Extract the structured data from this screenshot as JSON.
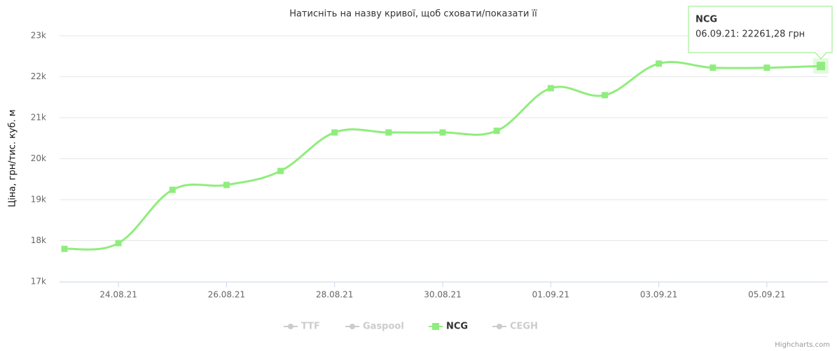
{
  "chart_data": {
    "type": "line",
    "title": "Натисніть на назву кривої, щоб сховати/показати її",
    "y_axis_label": "Ціна, грн/тис. куб. м",
    "credits": "Highcharts.com",
    "categories": [
      null,
      "24.08.21",
      null,
      "26.08.21",
      null,
      "28.08.21",
      null,
      "30.08.21",
      null,
      "01.09.21",
      null,
      "03.09.21",
      null,
      "05.09.21",
      null
    ],
    "series": [
      {
        "name": "TTF",
        "color": "#cccccc",
        "visible": false
      },
      {
        "name": "Gaspool",
        "color": "#cccccc",
        "visible": false
      },
      {
        "name": "NCG",
        "color": "#90ed7d",
        "visible": true,
        "values": [
          17800,
          17940,
          19240,
          19360,
          19700,
          20640,
          20640,
          20640,
          20680,
          21720,
          21550,
          22320,
          22220,
          22220,
          22261.28
        ]
      },
      {
        "name": "CEGH",
        "color": "#cccccc",
        "visible": false
      }
    ],
    "ylim": [
      17000,
      23000
    ],
    "yticks": [
      {
        "value": 17000,
        "label": "17k"
      },
      {
        "value": 18000,
        "label": "18k"
      },
      {
        "value": 19000,
        "label": "19k"
      },
      {
        "value": 20000,
        "label": "20k"
      },
      {
        "value": 21000,
        "label": "21k"
      },
      {
        "value": 22000,
        "label": "22k"
      },
      {
        "value": 23000,
        "label": "23k"
      }
    ],
    "grid": true,
    "tooltip": {
      "series": "NCG",
      "text": "06.09.21: 22261,28 грн",
      "point": 14
    }
  }
}
